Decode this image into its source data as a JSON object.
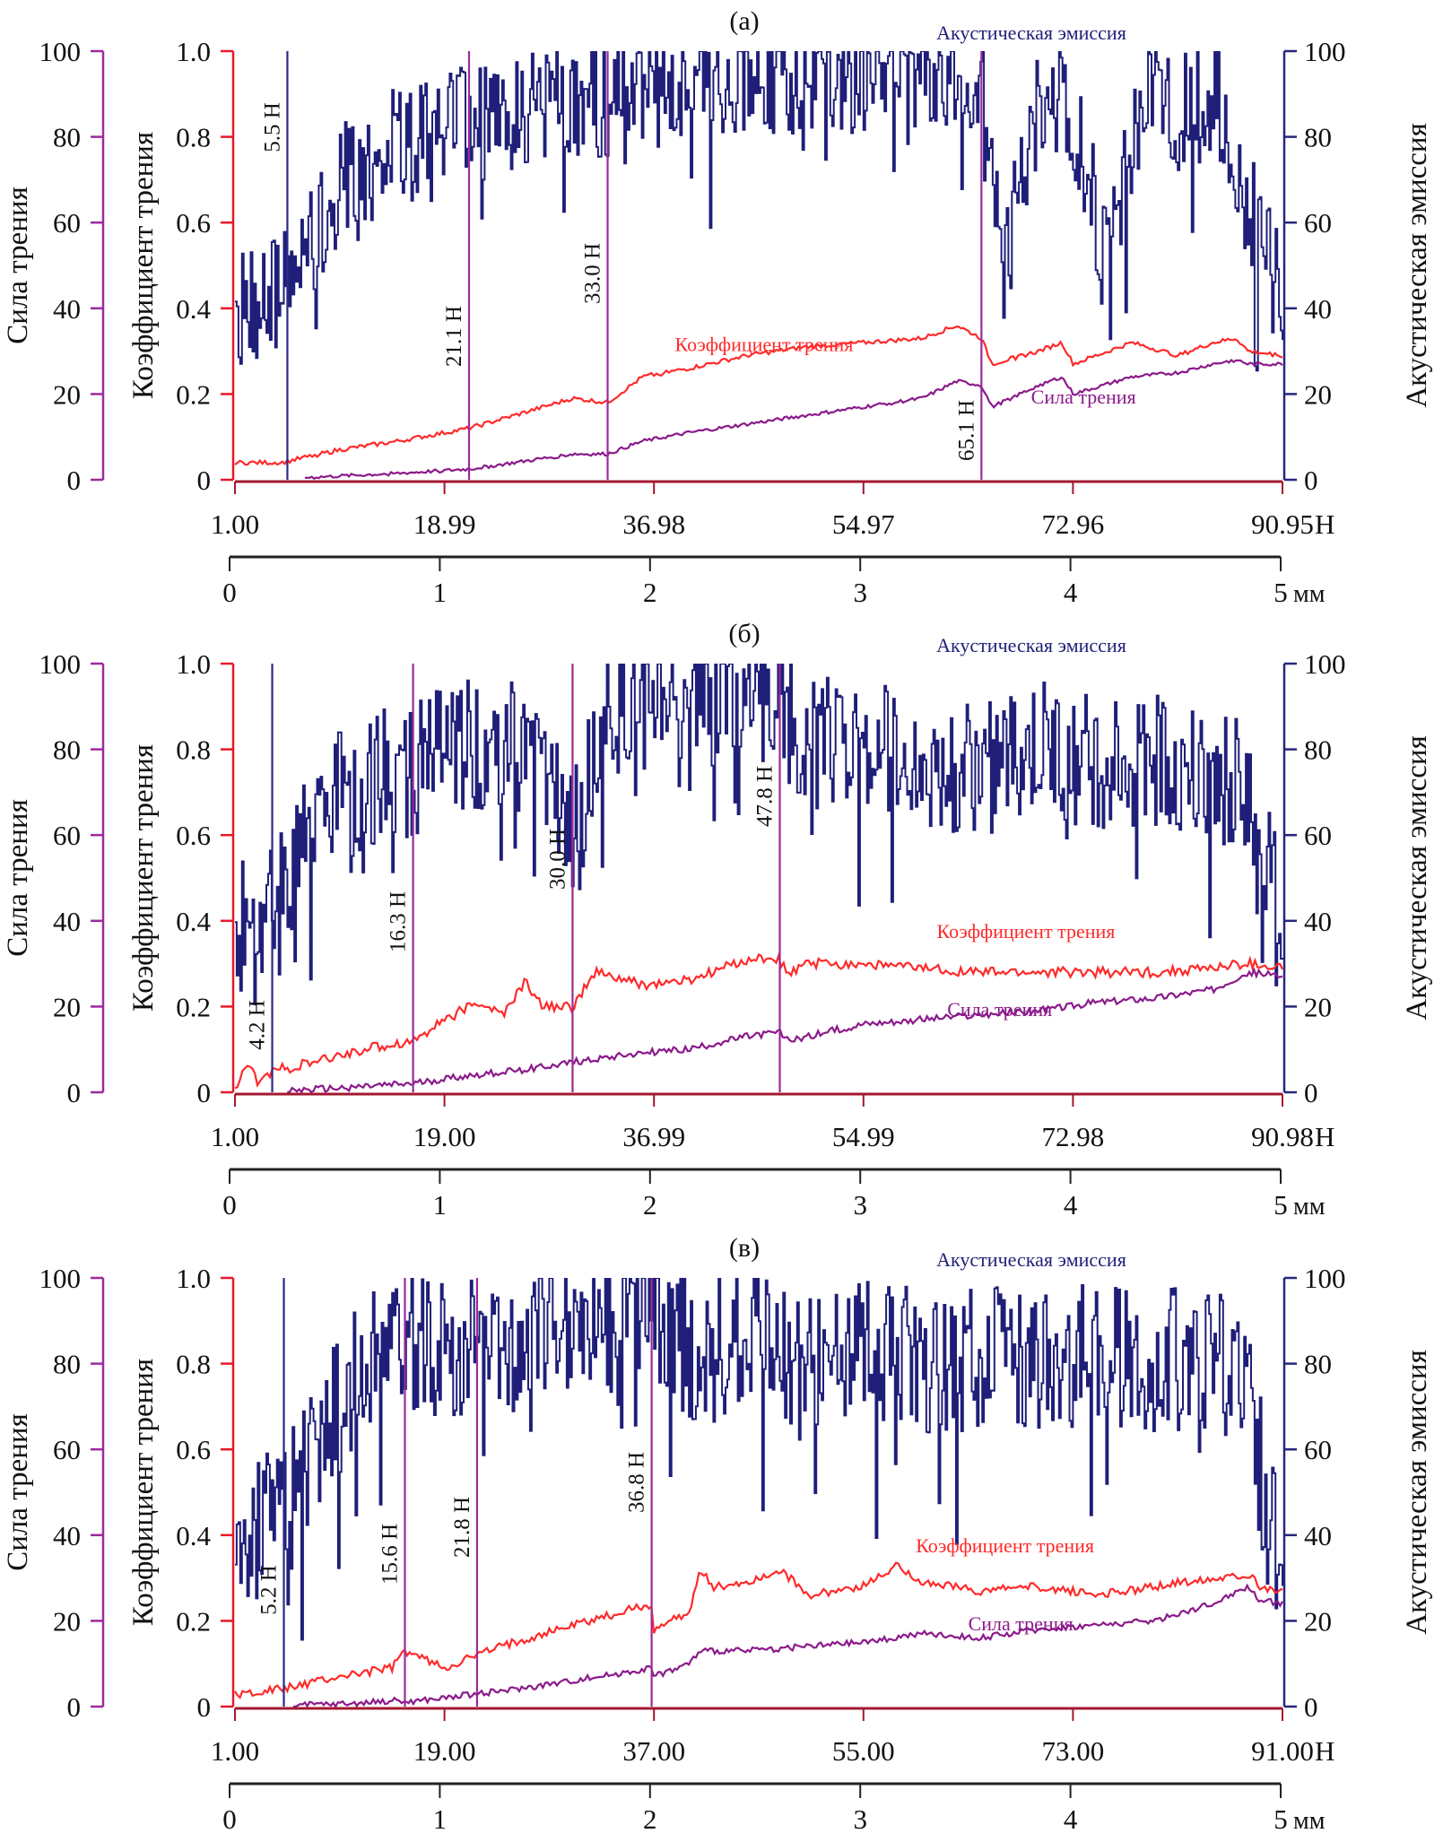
{
  "colors": {
    "acoustic": "#1f1f7a",
    "coefficient": "#ff2a2a",
    "force": "#8b1a8b",
    "force_axis": "#9c2a9c",
    "coef_axis": "#e8182a",
    "ae_axis": "#26267e",
    "n_axis": "#a3182f",
    "mm_axis": "#222222",
    "marker_blue": "#2a2a8a",
    "marker_purple": "#9c2a9c"
  },
  "chart_data": [
    {
      "type": "line",
      "panel_label": "(а)",
      "title": "(а)",
      "acoustic_label": "Акустическая эмиссия",
      "coef_label": "Коэффициент трения",
      "force_label": "Сила трения",
      "y_left_outer": {
        "label": "Сила трения",
        "ticks": [
          "0",
          "20",
          "40",
          "60",
          "80",
          "100"
        ],
        "range": [
          0,
          100
        ]
      },
      "y_left_inner": {
        "label": "Коэффициент трения",
        "ticks": [
          "0",
          "0.2",
          "0.4",
          "0.6",
          "0.8",
          "1.0"
        ],
        "range": [
          0,
          1
        ]
      },
      "y_right": {
        "label": "Акустическая эмиссия",
        "ticks": [
          "0",
          "20",
          "40",
          "60",
          "80",
          "100"
        ],
        "range": [
          0,
          100
        ]
      },
      "x_load": {
        "ticks": [
          "1.00",
          "18.99",
          "36.98",
          "54.97",
          "72.96",
          "90.95"
        ],
        "unit": "Н",
        "range": [
          1.0,
          90.95
        ]
      },
      "x_mm": {
        "ticks": [
          "0",
          "1",
          "2",
          "3",
          "4",
          "5"
        ],
        "unit": "мм",
        "range": [
          0,
          5
        ]
      },
      "markers": [
        {
          "load": 5.5,
          "label": "5.5 Н",
          "color": "blue"
        },
        {
          "load": 21.1,
          "label": "21.1 Н",
          "color": "purple"
        },
        {
          "load": 33.0,
          "label": "33.0 Н",
          "color": "purple"
        },
        {
          "load": 65.1,
          "label": "65.1 Н",
          "color": "purple",
          "label_low": true
        }
      ],
      "coef_legend_pos": [
        0.42,
        0.3
      ],
      "force_legend_pos": [
        0.76,
        0.22
      ],
      "series": [
        {
          "name": "Акустическая эмиссия",
          "axis": "right",
          "x": [
            1,
            5.5,
            10,
            15,
            20,
            25,
            30,
            35,
            40,
            45,
            50,
            55,
            60,
            64,
            65.1,
            67,
            70,
            73,
            76,
            79,
            82,
            85,
            88,
            90.95
          ],
          "y": [
            40,
            45,
            70,
            78,
            82,
            85,
            88,
            90,
            93,
            95,
            93,
            94,
            95,
            96,
            96,
            50,
            90,
            85,
            50,
            90,
            85,
            90,
            65,
            40
          ],
          "noise": 14
        },
        {
          "name": "Коэффициент трения",
          "axis": "coef",
          "x": [
            1,
            5,
            10,
            15,
            21.1,
            25,
            30,
            33,
            36,
            40,
            45,
            50,
            55,
            60,
            63,
            65.1,
            66,
            70,
            72,
            73,
            78,
            82,
            85,
            87,
            88,
            90.95
          ],
          "y": [
            0.04,
            0.04,
            0.07,
            0.09,
            0.12,
            0.15,
            0.19,
            0.18,
            0.24,
            0.26,
            0.29,
            0.31,
            0.32,
            0.33,
            0.36,
            0.33,
            0.27,
            0.3,
            0.32,
            0.27,
            0.32,
            0.29,
            0.32,
            0.33,
            0.3,
            0.29
          ],
          "noise": 0.005
        },
        {
          "name": "Сила трения",
          "axis": "force",
          "x": [
            7,
            15,
            21.1,
            25,
            30,
            33,
            36,
            40,
            45,
            50,
            55,
            60,
            63,
            65.1,
            66,
            70,
            72,
            73,
            78,
            82,
            85,
            87,
            88,
            90.95
          ],
          "y": [
            0.5,
            1.5,
            2.5,
            4,
            6,
            6,
            9,
            11,
            13,
            15,
            17,
            19,
            23,
            22,
            17,
            22,
            24,
            20,
            24,
            25,
            27,
            28,
            27,
            27
          ],
          "noise": 0.4
        }
      ]
    },
    {
      "type": "line",
      "panel_label": "(б)",
      "title": "(б)",
      "acoustic_label": "Акустическая эмиссия",
      "coef_label": "Коэффициент трения",
      "force_label": "Сила трения",
      "y_left_outer": {
        "label": "Сила трения",
        "ticks": [
          "0",
          "20",
          "40",
          "60",
          "80",
          "100"
        ],
        "range": [
          0,
          100
        ]
      },
      "y_left_inner": {
        "label": "Коэффициент трения",
        "ticks": [
          "0",
          "0.2",
          "0.4",
          "0.6",
          "0.8",
          "1.0"
        ],
        "range": [
          0,
          1
        ]
      },
      "y_right": {
        "label": "Акустическая эмиссия",
        "ticks": [
          "0",
          "20",
          "40",
          "60",
          "80",
          "100"
        ],
        "range": [
          0,
          100
        ]
      },
      "x_load": {
        "ticks": [
          "1.00",
          "19.00",
          "36.99",
          "54.99",
          "72.98",
          "90.98"
        ],
        "unit": "Н",
        "range": [
          1.0,
          90.98
        ]
      },
      "x_mm": {
        "ticks": [
          "0",
          "1",
          "2",
          "3",
          "4",
          "5"
        ],
        "unit": "мм",
        "range": [
          0,
          5
        ]
      },
      "markers": [
        {
          "load": 4.2,
          "label": "4.2 Н",
          "color": "blue"
        },
        {
          "load": 16.3,
          "label": "16.3 Н",
          "color": "purple"
        },
        {
          "load": 30.0,
          "label": "30.0 Н",
          "color": "purple"
        },
        {
          "load": 47.8,
          "label": "47.8 Н",
          "color": "purple"
        }
      ],
      "coef_legend_pos": [
        0.67,
        0.36
      ],
      "force_legend_pos": [
        0.68,
        0.22
      ],
      "series": [
        {
          "name": "Акустическая эмиссия",
          "axis": "right",
          "x": [
            1,
            4.2,
            8,
            12,
            16.3,
            20,
            25,
            28,
            30,
            33,
            36,
            40,
            44,
            47.8,
            50,
            55,
            60,
            65,
            70,
            75,
            80,
            85,
            88,
            90.98
          ],
          "y": [
            42,
            42,
            65,
            72,
            76,
            80,
            82,
            70,
            60,
            88,
            92,
            94,
            95,
            92,
            80,
            82,
            78,
            75,
            80,
            76,
            78,
            74,
            70,
            40
          ],
          "noise": 16
        },
        {
          "name": "Коэффициент трения",
          "axis": "coef",
          "x": [
            1,
            2,
            3,
            4.2,
            8,
            12,
            16.3,
            19,
            22,
            24,
            26,
            27,
            28,
            30,
            32,
            36,
            40,
            45,
            47.8,
            48.5,
            50,
            55,
            60,
            65,
            70,
            75,
            80,
            85,
            88,
            90.98
          ],
          "y": [
            0.0,
            0.07,
            0.02,
            0.05,
            0.07,
            0.1,
            0.12,
            0.17,
            0.21,
            0.18,
            0.26,
            0.21,
            0.2,
            0.2,
            0.28,
            0.25,
            0.26,
            0.31,
            0.31,
            0.27,
            0.3,
            0.3,
            0.29,
            0.28,
            0.28,
            0.28,
            0.28,
            0.29,
            0.3,
            0.29
          ],
          "noise": 0.012
        },
        {
          "name": "Сила трения",
          "axis": "force",
          "x": [
            5.5,
            10,
            16.3,
            20,
            25,
            30,
            35,
            40,
            45,
            47.8,
            48.5,
            55,
            60,
            65,
            70,
            75,
            80,
            85,
            88,
            90.98
          ],
          "y": [
            0.3,
            1,
            2,
            3.5,
            5,
            7,
            9,
            10,
            13,
            14,
            12,
            16,
            17,
            18,
            19,
            21,
            22,
            24,
            28,
            27
          ],
          "noise": 0.8
        }
      ]
    },
    {
      "type": "line",
      "panel_label": "(в)",
      "title": "(в)",
      "acoustic_label": "Акустическая эмиссия",
      "coef_label": "Коэффициент трения",
      "force_label": "Сила трения",
      "y_left_outer": {
        "label": "Сила трения",
        "ticks": [
          "0",
          "20",
          "40",
          "60",
          "80",
          "100"
        ],
        "range": [
          0,
          100
        ]
      },
      "y_left_inner": {
        "label": "Коэффициент трения",
        "ticks": [
          "0",
          "0.2",
          "0.4",
          "0.6",
          "0.8",
          "1.0"
        ],
        "range": [
          0,
          1
        ]
      },
      "y_right": {
        "label": "Акустическая эмиссия",
        "ticks": [
          "0",
          "20",
          "40",
          "60",
          "80",
          "100"
        ],
        "range": [
          0,
          100
        ]
      },
      "x_load": {
        "ticks": [
          "1.00",
          "19.00",
          "37.00",
          "55.00",
          "73.00",
          "91.00"
        ],
        "unit": "Н",
        "range": [
          1.0,
          91.0
        ]
      },
      "x_mm": {
        "ticks": [
          "0",
          "1",
          "2",
          "3",
          "4",
          "5"
        ],
        "unit": "мм",
        "range": [
          0,
          5
        ]
      },
      "markers": [
        {
          "load": 5.2,
          "label": "5.2 Н",
          "color": "blue"
        },
        {
          "load": 15.6,
          "label": "15.6 Н",
          "color": "purple"
        },
        {
          "load": 21.8,
          "label": "21.8 Н",
          "color": "purple"
        },
        {
          "load": 36.8,
          "label": "36.8 Н",
          "color": "purple"
        }
      ],
      "coef_legend_pos": [
        0.65,
        0.36
      ],
      "force_legend_pos": [
        0.7,
        0.22
      ],
      "series": [
        {
          "name": "Акустическая эмиссия",
          "axis": "right",
          "x": [
            1,
            5.2,
            8,
            12,
            15.6,
            20,
            25,
            30,
            36.8,
            40,
            45,
            50,
            55,
            60,
            65,
            70,
            75,
            80,
            85,
            88,
            90,
            91
          ],
          "y": [
            40,
            45,
            60,
            80,
            85,
            82,
            85,
            90,
            94,
            82,
            85,
            80,
            84,
            80,
            82,
            80,
            82,
            80,
            82,
            72,
            40,
            38
          ],
          "noise": 17
        },
        {
          "name": "Коэффициент трения",
          "axis": "coef",
          "x": [
            1,
            5,
            10,
            14.5,
            15.6,
            19,
            21.8,
            25,
            30,
            36.8,
            37,
            40,
            41,
            42,
            45,
            48,
            50,
            55,
            58,
            60,
            65,
            70,
            75,
            80,
            85,
            88,
            89,
            91
          ],
          "y": [
            0.03,
            0.04,
            0.07,
            0.09,
            0.13,
            0.09,
            0.12,
            0.15,
            0.19,
            0.24,
            0.18,
            0.22,
            0.32,
            0.28,
            0.29,
            0.32,
            0.26,
            0.28,
            0.33,
            0.29,
            0.27,
            0.28,
            0.26,
            0.28,
            0.3,
            0.31,
            0.28,
            0.27
          ],
          "noise": 0.01
        },
        {
          "name": "Сила трения",
          "axis": "force",
          "x": [
            6,
            12,
            15,
            15.6,
            19,
            21.8,
            25,
            30,
            36.8,
            37,
            40,
            41,
            45,
            50,
            55,
            60,
            65,
            70,
            75,
            80,
            85,
            88,
            89,
            91
          ],
          "y": [
            0.3,
            0.8,
            1.5,
            1.0,
            2,
            3,
            4,
            6,
            9,
            7,
            10,
            13,
            13,
            14,
            15,
            17,
            16,
            18,
            19,
            20,
            24,
            28,
            25,
            24
          ],
          "noise": 0.7
        }
      ]
    }
  ]
}
